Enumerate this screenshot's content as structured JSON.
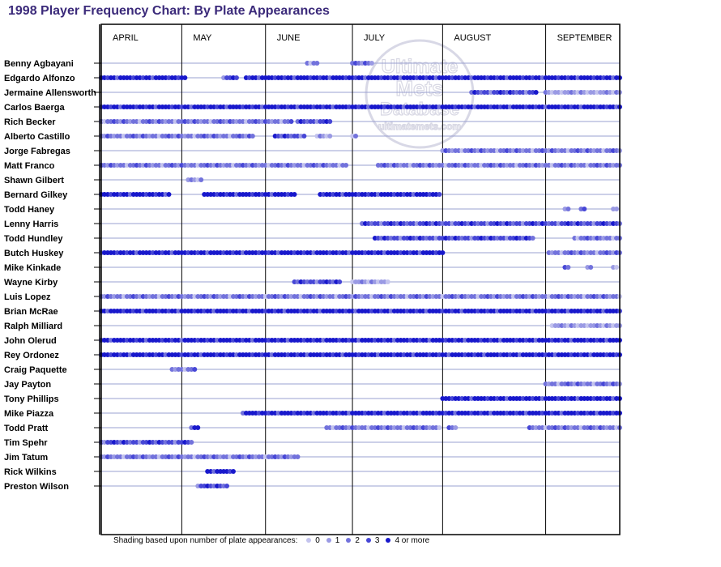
{
  "chart_data": {
    "type": "scatter",
    "title": "1998 Player Frequency Chart: By Plate Appearances",
    "x_axis": {
      "unit": "game",
      "range": [
        1,
        162
      ],
      "months": [
        {
          "label": "APRIL",
          "start": 1
        },
        {
          "label": "MAY",
          "start": 26
        },
        {
          "label": "JUNE",
          "start": 52
        },
        {
          "label": "JULY",
          "start": 79
        },
        {
          "label": "AUGUST",
          "start": 107
        },
        {
          "label": "SEPTEMBER",
          "start": 139
        }
      ]
    },
    "legend": {
      "label": "Shading based upon number of plate appearances:",
      "levels": [
        "0",
        "1",
        "2",
        "3",
        "4 or more"
      ],
      "colors": [
        "#c4c4ee",
        "#9a9ae4",
        "#7272dc",
        "#4646d6",
        "#1818cc"
      ]
    },
    "players": [
      {
        "name": "Benny Agbayani",
        "segments": [
          [
            65,
            68,
            2
          ],
          [
            79,
            85,
            2
          ]
        ]
      },
      {
        "name": "Edgardo Alfonzo",
        "segments": [
          [
            1,
            27,
            4
          ],
          [
            39,
            43,
            3
          ],
          [
            46,
            162,
            4
          ]
        ]
      },
      {
        "name": "Jermaine Allensworth",
        "segments": [
          [
            116,
            136,
            3
          ],
          [
            139,
            162,
            1
          ]
        ]
      },
      {
        "name": "Carlos Baerga",
        "segments": [
          [
            1,
            162,
            4
          ]
        ]
      },
      {
        "name": "Rich Becker",
        "segments": [
          [
            1,
            60,
            2
          ],
          [
            62,
            72,
            3
          ]
        ]
      },
      {
        "name": "Alberto Castillo",
        "segments": [
          [
            1,
            48,
            2
          ],
          [
            55,
            64,
            3
          ],
          [
            68,
            72,
            1
          ],
          [
            79,
            80,
            1
          ]
        ]
      },
      {
        "name": "Jorge Fabregas",
        "segments": [
          [
            107,
            162,
            2
          ]
        ]
      },
      {
        "name": "Matt Franco",
        "segments": [
          [
            1,
            77,
            2
          ],
          [
            87,
            162,
            2
          ]
        ]
      },
      {
        "name": "Shawn Gilbert",
        "segments": [
          [
            28,
            32,
            1
          ]
        ]
      },
      {
        "name": "Bernard Gilkey",
        "segments": [
          [
            1,
            22,
            4
          ],
          [
            33,
            61,
            4
          ],
          [
            69,
            106,
            4
          ]
        ]
      },
      {
        "name": "Todd Haney",
        "segments": [
          [
            145,
            146,
            2
          ],
          [
            150,
            151,
            2
          ],
          [
            160,
            161,
            1
          ]
        ]
      },
      {
        "name": "Lenny Harris",
        "segments": [
          [
            82,
            162,
            3
          ]
        ]
      },
      {
        "name": "Todd Hundley",
        "segments": [
          [
            86,
            135,
            3
          ],
          [
            148,
            162,
            2
          ]
        ]
      },
      {
        "name": "Butch Huskey",
        "segments": [
          [
            1,
            107,
            4
          ],
          [
            140,
            162,
            2
          ]
        ]
      },
      {
        "name": "Mike Kinkade",
        "segments": [
          [
            145,
            146,
            2
          ],
          [
            152,
            153,
            1
          ],
          [
            160,
            161,
            1
          ]
        ]
      },
      {
        "name": "Wayne Kirby",
        "segments": [
          [
            61,
            75,
            3
          ],
          [
            79,
            90,
            1
          ]
        ]
      },
      {
        "name": "Luis Lopez",
        "segments": [
          [
            1,
            162,
            2
          ]
        ]
      },
      {
        "name": "Brian McRae",
        "segments": [
          [
            1,
            162,
            4
          ]
        ]
      },
      {
        "name": "Ralph Milliard",
        "segments": [
          [
            141,
            162,
            1
          ]
        ]
      },
      {
        "name": "John Olerud",
        "segments": [
          [
            1,
            162,
            4
          ]
        ]
      },
      {
        "name": "Rey Ordonez",
        "segments": [
          [
            1,
            162,
            4
          ]
        ]
      },
      {
        "name": "Craig Paquette",
        "segments": [
          [
            23,
            30,
            2
          ]
        ]
      },
      {
        "name": "Jay Payton",
        "segments": [
          [
            139,
            162,
            2
          ]
        ]
      },
      {
        "name": "Tony Phillips",
        "segments": [
          [
            107,
            162,
            4
          ]
        ]
      },
      {
        "name": "Mike Piazza",
        "segments": [
          [
            45,
            162,
            4
          ]
        ]
      },
      {
        "name": "Todd Pratt",
        "segments": [
          [
            29,
            31,
            4
          ],
          [
            71,
            106,
            2
          ],
          [
            109,
            111,
            2
          ],
          [
            134,
            162,
            2
          ]
        ]
      },
      {
        "name": "Tim Spehr",
        "segments": [
          [
            1,
            29,
            3
          ]
        ]
      },
      {
        "name": "Jim Tatum",
        "segments": [
          [
            1,
            62,
            2
          ]
        ]
      },
      {
        "name": "Rick Wilkins",
        "segments": [
          [
            34,
            42,
            4
          ]
        ]
      },
      {
        "name": "Preston Wilson",
        "segments": [
          [
            31,
            40,
            3
          ]
        ]
      }
    ]
  },
  "watermark": {
    "line1": "Ultimate",
    "line2": "Mets",
    "line3": "Database",
    "url": "ultimatemets.com"
  }
}
